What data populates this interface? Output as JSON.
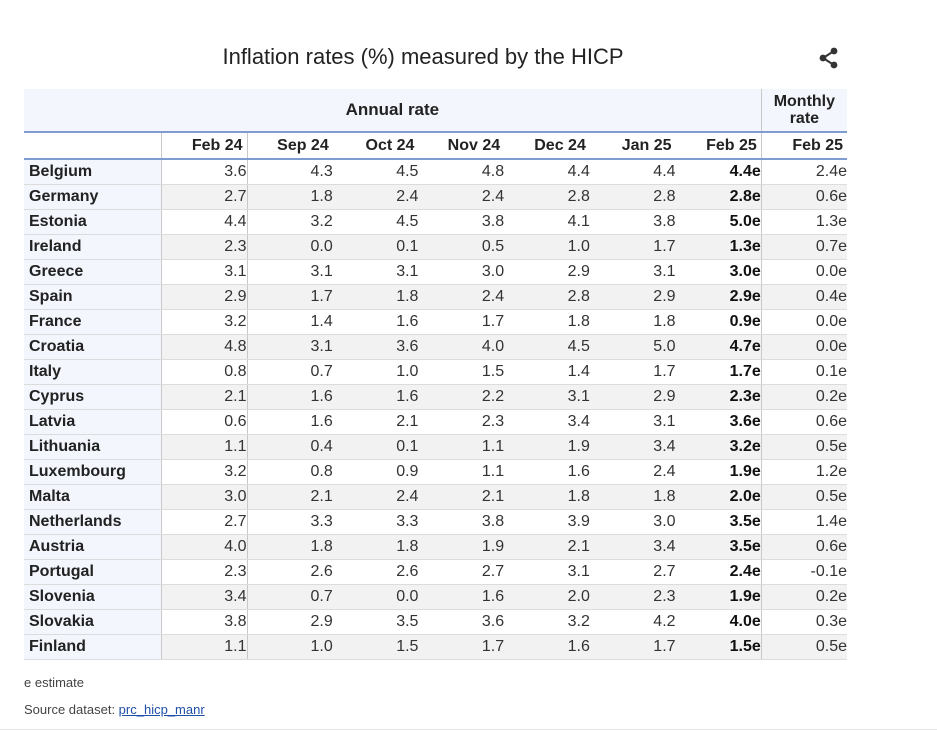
{
  "title": "Inflation rates (%) measured by the HICP",
  "header": {
    "annual_label": "Annual rate",
    "monthly_label": "Monthly rate"
  },
  "columns": [
    "Feb 24",
    "Sep 24",
    "Oct 24",
    "Nov 24",
    "Dec 24",
    "Jan 25",
    "Feb 25",
    "Feb 25"
  ],
  "rows": [
    {
      "country": "Belgium",
      "values": [
        "3.6",
        "4.3",
        "4.5",
        "4.8",
        "4.4",
        "4.4",
        "4.4e",
        "2.4e"
      ]
    },
    {
      "country": "Germany",
      "values": [
        "2.7",
        "1.8",
        "2.4",
        "2.4",
        "2.8",
        "2.8",
        "2.8e",
        "0.6e"
      ]
    },
    {
      "country": "Estonia",
      "values": [
        "4.4",
        "3.2",
        "4.5",
        "3.8",
        "4.1",
        "3.8",
        "5.0e",
        "1.3e"
      ]
    },
    {
      "country": "Ireland",
      "values": [
        "2.3",
        "0.0",
        "0.1",
        "0.5",
        "1.0",
        "1.7",
        "1.3e",
        "0.7e"
      ]
    },
    {
      "country": "Greece",
      "values": [
        "3.1",
        "3.1",
        "3.1",
        "3.0",
        "2.9",
        "3.1",
        "3.0e",
        "0.0e"
      ]
    },
    {
      "country": "Spain",
      "values": [
        "2.9",
        "1.7",
        "1.8",
        "2.4",
        "2.8",
        "2.9",
        "2.9e",
        "0.4e"
      ]
    },
    {
      "country": "France",
      "values": [
        "3.2",
        "1.4",
        "1.6",
        "1.7",
        "1.8",
        "1.8",
        "0.9e",
        "0.0e"
      ]
    },
    {
      "country": "Croatia",
      "values": [
        "4.8",
        "3.1",
        "3.6",
        "4.0",
        "4.5",
        "5.0",
        "4.7e",
        "0.0e"
      ]
    },
    {
      "country": "Italy",
      "values": [
        "0.8",
        "0.7",
        "1.0",
        "1.5",
        "1.4",
        "1.7",
        "1.7e",
        "0.1e"
      ]
    },
    {
      "country": "Cyprus",
      "values": [
        "2.1",
        "1.6",
        "1.6",
        "2.2",
        "3.1",
        "2.9",
        "2.3e",
        "0.2e"
      ]
    },
    {
      "country": "Latvia",
      "values": [
        "0.6",
        "1.6",
        "2.1",
        "2.3",
        "3.4",
        "3.1",
        "3.6e",
        "0.6e"
      ]
    },
    {
      "country": "Lithuania",
      "values": [
        "1.1",
        "0.4",
        "0.1",
        "1.1",
        "1.9",
        "3.4",
        "3.2e",
        "0.5e"
      ]
    },
    {
      "country": "Luxembourg",
      "values": [
        "3.2",
        "0.8",
        "0.9",
        "1.1",
        "1.6",
        "2.4",
        "1.9e",
        "1.2e"
      ]
    },
    {
      "country": "Malta",
      "values": [
        "3.0",
        "2.1",
        "2.4",
        "2.1",
        "1.8",
        "1.8",
        "2.0e",
        "0.5e"
      ]
    },
    {
      "country": "Netherlands",
      "values": [
        "2.7",
        "3.3",
        "3.3",
        "3.8",
        "3.9",
        "3.0",
        "3.5e",
        "1.4e"
      ]
    },
    {
      "country": "Austria",
      "values": [
        "4.0",
        "1.8",
        "1.8",
        "1.9",
        "2.1",
        "3.4",
        "3.5e",
        "0.6e"
      ]
    },
    {
      "country": "Portugal",
      "values": [
        "2.3",
        "2.6",
        "2.6",
        "2.7",
        "3.1",
        "2.7",
        "2.4e",
        "-0.1e"
      ]
    },
    {
      "country": "Slovenia",
      "values": [
        "3.4",
        "0.7",
        "0.0",
        "1.6",
        "2.0",
        "2.3",
        "1.9e",
        "0.2e"
      ]
    },
    {
      "country": "Slovakia",
      "values": [
        "3.8",
        "2.9",
        "3.5",
        "3.6",
        "3.2",
        "4.2",
        "4.0e",
        "0.3e"
      ]
    },
    {
      "country": "Finland",
      "values": [
        "1.1",
        "1.0",
        "1.5",
        "1.7",
        "1.6",
        "1.7",
        "1.5e",
        "0.5e"
      ]
    }
  ],
  "footer": {
    "note": "e estimate",
    "source_label": "Source dataset: ",
    "source_link": "prc_hicp_manr"
  },
  "icons": {
    "share": "share-icon"
  },
  "colors": {
    "header_bg": "#f3f6fc",
    "rule": "#7f9bcf",
    "link": "#1f4fa8"
  }
}
